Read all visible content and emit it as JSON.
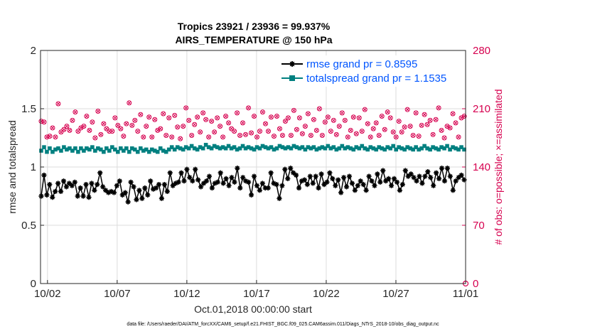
{
  "chart_data": {
    "type": "line",
    "title_line1": "Tropics 23921 / 23936 = 99.937%",
    "title_line2": "AIRS_TEMPERATURE @ 150 hPa",
    "xlabel": "Oct.01,2018 00:00:00 start",
    "ylabel_left": "rmse and totalspread",
    "ylabel_right": "# of obs: o=possible; ×=assimilated",
    "x_ticks": [
      "10/02",
      "10/07",
      "10/12",
      "10/17",
      "10/22",
      "10/27",
      "11/01"
    ],
    "x_tick_days": [
      1,
      6,
      11,
      16,
      21,
      26,
      31
    ],
    "xlim_days": [
      0.5,
      31
    ],
    "ylim_left": [
      0,
      2
    ],
    "y_ticks_left": [
      "0",
      "0.5",
      "1",
      "1.5",
      "2"
    ],
    "y_tick_values_left": [
      0,
      0.5,
      1,
      1.5,
      2
    ],
    "ylim_right": [
      0,
      280
    ],
    "y_ticks_right": [
      "0",
      "70",
      "140",
      "210",
      "280"
    ],
    "y_tick_values_right": [
      0,
      70,
      140,
      210,
      280
    ],
    "colors": {
      "rmse": "#000000",
      "spread": "#008080",
      "obs": "#d6004f",
      "legend_text": "#0055ff"
    },
    "legend_position": "top-right",
    "series": [
      {
        "name": "rmse grand pr = 0.8595",
        "axis": "left",
        "color": "#000000",
        "marker": "star",
        "values": [
          0.75,
          0.93,
          0.76,
          0.85,
          0.74,
          0.79,
          0.86,
          0.79,
          0.88,
          0.83,
          0.86,
          0.84,
          0.87,
          0.75,
          0.82,
          0.75,
          0.85,
          0.74,
          0.86,
          0.8,
          0.85,
          0.95,
          0.83,
          0.8,
          0.78,
          0.79,
          0.78,
          0.84,
          0.88,
          0.76,
          0.78,
          0.7,
          0.87,
          0.83,
          0.72,
          0.8,
          0.73,
          0.82,
          0.76,
          0.88,
          0.81,
          0.82,
          0.85,
          0.73,
          0.85,
          0.79,
          0.95,
          0.84,
          0.86,
          0.87,
          0.95,
          0.88,
          0.98,
          0.91,
          0.88,
          0.98,
          0.89,
          0.83,
          0.86,
          0.88,
          0.92,
          0.82,
          0.86,
          0.87,
          0.95,
          0.86,
          0.9,
          0.84,
          0.91,
          0.87,
          0.99,
          0.82,
          0.91,
          0.88,
          0.87,
          0.76,
          0.92,
          0.84,
          0.8,
          0.86,
          0.82,
          0.82,
          0.95,
          0.86,
          0.85,
          0.73,
          0.84,
          0.98,
          0.9,
          0.99,
          0.95,
          0.93,
          0.82,
          0.88,
          0.89,
          0.85,
          0.92,
          0.86,
          0.92,
          0.82,
          0.94,
          0.85,
          0.87,
          0.95,
          0.9,
          0.84,
          0.89,
          0.78,
          0.91,
          0.83,
          0.92,
          0.86,
          0.8,
          0.84,
          0.88,
          0.85,
          0.8,
          0.92,
          0.88,
          0.84,
          0.94,
          0.87,
          0.97,
          0.88,
          0.9,
          0.84,
          0.9,
          0.87,
          0.8,
          0.85,
          0.97,
          0.92,
          0.94,
          0.91,
          0.88,
          0.92,
          0.86,
          0.92,
          0.96,
          0.91,
          0.84,
          0.95,
          0.9,
          0.99,
          0.88,
          0.99,
          0.92,
          0.8,
          0.88,
          0.91,
          0.93,
          0.89
        ]
      },
      {
        "name": "totalspread grand pr = 1.1535",
        "axis": "left",
        "color": "#008080",
        "marker": "square",
        "values": [
          1.14,
          1.17,
          1.13,
          1.16,
          1.13,
          1.15,
          1.16,
          1.14,
          1.17,
          1.15,
          1.16,
          1.14,
          1.16,
          1.13,
          1.16,
          1.14,
          1.16,
          1.15,
          1.17,
          1.14,
          1.16,
          1.15,
          1.13,
          1.16,
          1.14,
          1.17,
          1.15,
          1.13,
          1.16,
          1.14,
          1.16,
          1.13,
          1.16,
          1.15,
          1.13,
          1.16,
          1.14,
          1.15,
          1.13,
          1.15,
          1.14,
          1.13,
          1.16,
          1.14,
          1.13,
          1.15,
          1.17,
          1.15,
          1.17,
          1.16,
          1.15,
          1.17,
          1.16,
          1.18,
          1.16,
          1.15,
          1.17,
          1.16,
          1.19,
          1.17,
          1.16,
          1.18,
          1.17,
          1.16,
          1.17,
          1.16,
          1.18,
          1.16,
          1.17,
          1.15,
          1.16,
          1.18,
          1.16,
          1.17,
          1.16,
          1.15,
          1.17,
          1.16,
          1.18,
          1.17,
          1.16,
          1.17,
          1.15,
          1.16,
          1.18,
          1.17,
          1.16,
          1.17,
          1.16,
          1.18,
          1.17,
          1.16,
          1.17,
          1.15,
          1.17,
          1.16,
          1.17,
          1.15,
          1.16,
          1.17,
          1.16,
          1.18,
          1.16,
          1.17,
          1.15,
          1.16,
          1.18,
          1.16,
          1.17,
          1.16,
          1.15,
          1.17,
          1.16,
          1.18,
          1.16,
          1.15,
          1.17,
          1.16,
          1.15,
          1.17,
          1.16,
          1.15,
          1.17,
          1.16,
          1.18,
          1.15,
          1.17,
          1.16,
          1.15,
          1.17,
          1.16,
          1.15,
          1.17,
          1.15,
          1.16,
          1.18,
          1.16,
          1.15,
          1.17,
          1.16,
          1.15,
          1.17,
          1.16,
          1.18,
          1.15,
          1.17,
          1.16,
          1.15,
          1.17,
          1.15
        ]
      },
      {
        "name": "# of obs",
        "axis": "right",
        "color": "#d6004f",
        "marker": "circle-x",
        "values": [
          195,
          194,
          176,
          177,
          187,
          176,
          216,
          182,
          185,
          189,
          184,
          196,
          206,
          183,
          187,
          189,
          201,
          184,
          194,
          175,
          207,
          179,
          192,
          186,
          183,
          183,
          199,
          190,
          186,
          177,
          192,
          217,
          190,
          196,
          183,
          203,
          176,
          189,
          200,
          176,
          197,
          184,
          186,
          204,
          178,
          199,
          176,
          202,
          188,
          174,
          189,
          211,
          196,
          178,
          191,
          200,
          182,
          205,
          197,
          176,
          195,
          182,
          199,
          189,
          176,
          201,
          193,
          186,
          183,
          205,
          178,
          193,
          179,
          211,
          181,
          201,
          176,
          183,
          206,
          192,
          183,
          200,
          177,
          201,
          186,
          178,
          195,
          199,
          178,
          208,
          185,
          199,
          180,
          189,
          204,
          178,
          197,
          184,
          210,
          178,
          194,
          200,
          183,
          196,
          179,
          189,
          205,
          196,
          176,
          184,
          200,
          180,
          199,
          183,
          209,
          192,
          176,
          186,
          193,
          178,
          201,
          185,
          206,
          199,
          182,
          176,
          195,
          182,
          188,
          209,
          189,
          178,
          205,
          177,
          190,
          203,
          191,
          196,
          179,
          197,
          211,
          184,
          175,
          189,
          187,
          204,
          193,
          176,
          199,
          201
        ]
      }
    ]
  },
  "footnote": "data file: /Users/raeder/DAI/ATM_forcXX/CAM6_setup/f.e21.FHIST_BGC.f09_025.CAM6assim.011/Diags_NTrS_2018-10/obs_diag_output.nc"
}
